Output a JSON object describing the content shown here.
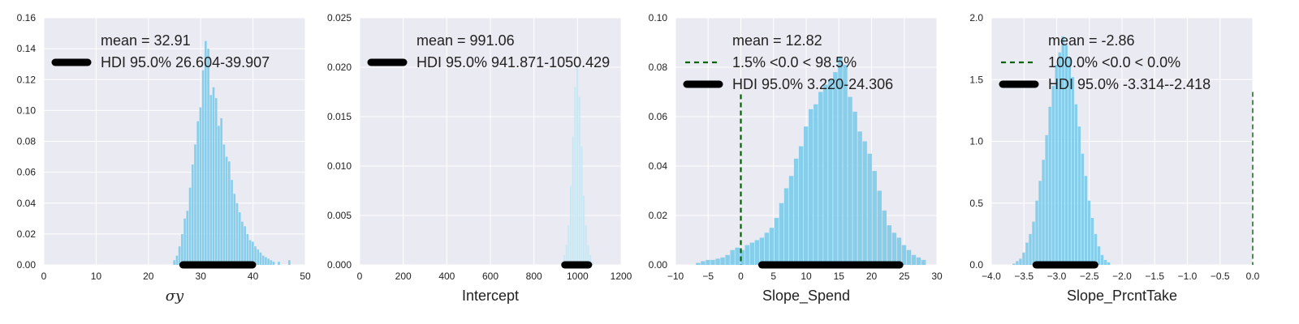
{
  "chart_data": [
    {
      "type": "bar",
      "xlabel": "σy",
      "xlim": [
        0,
        50
      ],
      "ylim": [
        0,
        0.16
      ],
      "xticks": [
        "0",
        "10",
        "20",
        "30",
        "40",
        "50"
      ],
      "yticks": [
        "0.00",
        "0.02",
        "0.04",
        "0.06",
        "0.08",
        "0.10",
        "0.12",
        "0.14",
        "0.16"
      ],
      "legend": [
        "mean = 32.91",
        "HDI 95.0% 26.604-39.907"
      ],
      "mean": 32.91,
      "hdi": [
        26.604,
        39.907
      ],
      "bar_color": "#87CEEB",
      "x": [
        25.0,
        25.5,
        26.0,
        26.5,
        27.0,
        27.5,
        28.0,
        28.5,
        29.0,
        29.5,
        30.0,
        30.5,
        31.0,
        31.5,
        32.0,
        32.5,
        33.0,
        33.5,
        34.0,
        34.5,
        35.0,
        35.5,
        36.0,
        36.5,
        37.0,
        37.5,
        38.0,
        38.5,
        39.0,
        39.5,
        40.0,
        40.5,
        41.0,
        41.5,
        42.0,
        42.5,
        43.0,
        43.5,
        44.0,
        45.0,
        47.0
      ],
      "values": [
        0.003,
        0.006,
        0.012,
        0.02,
        0.03,
        0.035,
        0.05,
        0.065,
        0.078,
        0.093,
        0.102,
        0.126,
        0.145,
        0.14,
        0.11,
        0.115,
        0.108,
        0.09,
        0.095,
        0.078,
        0.07,
        0.067,
        0.055,
        0.046,
        0.04,
        0.034,
        0.028,
        0.025,
        0.02,
        0.016,
        0.015,
        0.012,
        0.01,
        0.008,
        0.006,
        0.005,
        0.004,
        0.003,
        0.002,
        0.002,
        0.003
      ]
    },
    {
      "type": "bar",
      "xlabel": "Intercept",
      "xlim": [
        0,
        1200
      ],
      "ylim": [
        0,
        0.025
      ],
      "xticks": [
        "0",
        "200",
        "400",
        "600",
        "800",
        "1000",
        "1200"
      ],
      "yticks": [
        "0.000",
        "0.005",
        "0.010",
        "0.015",
        "0.020",
        "0.025"
      ],
      "legend": [
        "mean = 991.06",
        "HDI 95.0% 941.871-1050.429"
      ],
      "mean": 991.06,
      "hdi": [
        941.871,
        1050.429
      ],
      "bar_color": "#C8E8F4",
      "x": [
        930,
        940,
        950,
        960,
        970,
        980,
        990,
        1000,
        1010,
        1020,
        1030,
        1040,
        1050,
        1060,
        1070
      ],
      "values": [
        0.0003,
        0.001,
        0.002,
        0.004,
        0.008,
        0.013,
        0.018,
        0.02,
        0.017,
        0.012,
        0.007,
        0.004,
        0.002,
        0.001,
        0.0003
      ]
    },
    {
      "type": "bar",
      "xlabel": "Slope_Spend",
      "xlim": [
        -10,
        30
      ],
      "ylim": [
        0,
        0.1
      ],
      "xticks": [
        "−10",
        "−5",
        "0",
        "5",
        "10",
        "15",
        "20",
        "25",
        "30"
      ],
      "yticks": [
        "0.00",
        "0.02",
        "0.04",
        "0.06",
        "0.08",
        "0.10"
      ],
      "legend": [
        "mean = 12.82",
        "1.5% <0.0 < 98.5%",
        "HDI 95.0% 3.220-24.306"
      ],
      "mean": 12.82,
      "hdi": [
        3.22,
        24.306
      ],
      "compare_value": 0,
      "bar_color": "#87CEEB",
      "x": [
        -6.5,
        -5.75,
        -5.0,
        -4.25,
        -3.5,
        -2.75,
        -2.0,
        -1.25,
        -0.5,
        0.25,
        1.0,
        1.75,
        2.5,
        3.25,
        4.0,
        4.75,
        5.5,
        6.25,
        7.0,
        7.75,
        8.5,
        9.25,
        10.0,
        10.75,
        11.5,
        12.25,
        13.0,
        13.75,
        14.5,
        15.25,
        16.0,
        16.75,
        17.5,
        18.25,
        19.0,
        19.75,
        20.5,
        21.25,
        22.0,
        22.75,
        23.5,
        24.25,
        25.0,
        25.75,
        26.5,
        27.25,
        28.0
      ],
      "values": [
        0.0008,
        0.0015,
        0.002,
        0.002,
        0.0025,
        0.003,
        0.004,
        0.006,
        0.007,
        0.006,
        0.008,
        0.009,
        0.01,
        0.011,
        0.013,
        0.015,
        0.019,
        0.025,
        0.031,
        0.036,
        0.043,
        0.048,
        0.056,
        0.063,
        0.065,
        0.07,
        0.073,
        0.075,
        0.078,
        0.084,
        0.081,
        0.068,
        0.062,
        0.054,
        0.05,
        0.045,
        0.038,
        0.03,
        0.022,
        0.016,
        0.013,
        0.011,
        0.008,
        0.006,
        0.004,
        0.003,
        0.002
      ]
    },
    {
      "type": "bar",
      "xlabel": "Slope_PrcntTake",
      "xlim": [
        -4.0,
        0.0
      ],
      "ylim": [
        0,
        2.0
      ],
      "xticks": [
        "−4.0",
        "−3.5",
        "−3.0",
        "−2.5",
        "−2.0",
        "−1.5",
        "−1.0",
        "−0.5",
        "0.0"
      ],
      "yticks": [
        "0.0",
        "0.5",
        "1.0",
        "1.5",
        "2.0"
      ],
      "legend": [
        "mean = -2.86",
        "100.0% <0.0 < 0.0%",
        "HDI 95.0% -3.314--2.418"
      ],
      "mean": -2.86,
      "hdi": [
        -3.314,
        -2.418
      ],
      "compare_value": 0,
      "bar_color": "#87CEEB",
      "x": [
        -3.65,
        -3.6,
        -3.55,
        -3.5,
        -3.45,
        -3.4,
        -3.35,
        -3.3,
        -3.25,
        -3.2,
        -3.15,
        -3.1,
        -3.05,
        -3.0,
        -2.95,
        -2.9,
        -2.85,
        -2.8,
        -2.75,
        -2.7,
        -2.65,
        -2.6,
        -2.55,
        -2.5,
        -2.45,
        -2.4,
        -2.35,
        -2.3,
        -2.25,
        -2.2
      ],
      "values": [
        0.01,
        0.03,
        0.05,
        0.1,
        0.18,
        0.25,
        0.35,
        0.52,
        0.68,
        0.85,
        1.05,
        1.28,
        1.45,
        1.62,
        1.72,
        1.85,
        1.78,
        1.68,
        1.52,
        1.3,
        1.12,
        0.9,
        0.72,
        0.52,
        0.38,
        0.25,
        0.15,
        0.08,
        0.04,
        0.02
      ]
    }
  ],
  "colors": {
    "axes_bg": "#EAEAF2",
    "grid": "#FFFFFF",
    "hdi_line": "#000000",
    "compare_line": "#006400"
  }
}
